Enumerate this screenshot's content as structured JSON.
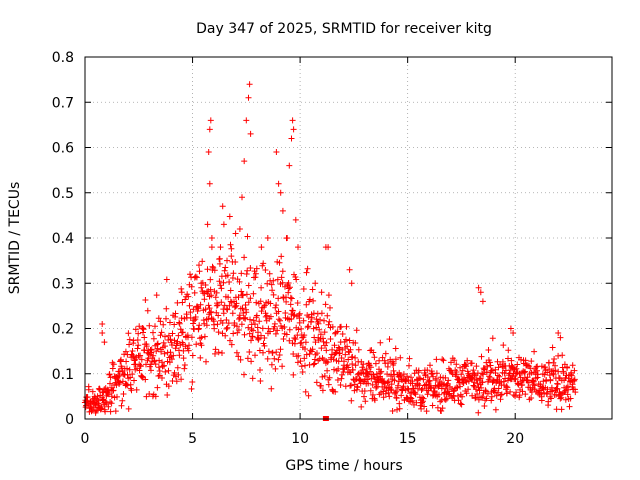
{
  "chart_data": {
    "type": "scatter",
    "title": "Day 347 of 2025, SRMTID for receiver kitg",
    "xlabel": "GPS time / hours",
    "ylabel": "SRMTID / TECUs",
    "xlim": [
      0,
      24.5
    ],
    "ylim": [
      0,
      0.8
    ],
    "x_ticks": [
      0,
      5,
      10,
      15,
      20
    ],
    "x_tick_labels": [
      "0",
      "5",
      "10",
      "15",
      "20"
    ],
    "y_ticks": [
      0,
      0.1,
      0.2,
      0.3,
      0.4,
      0.5,
      0.6,
      0.7,
      0.8
    ],
    "y_tick_labels": [
      "0",
      "0.1",
      "0.2",
      "0.3",
      "0.4",
      "0.5",
      "0.6",
      "0.7",
      "0.8"
    ],
    "grid": true,
    "marker": "plus",
    "color": "#ff0000",
    "trend": [
      [
        0.0,
        0.04
      ],
      [
        0.5,
        0.03
      ],
      [
        1.0,
        0.05
      ],
      [
        1.5,
        0.08
      ],
      [
        2.0,
        0.11
      ],
      [
        2.5,
        0.13
      ],
      [
        3.0,
        0.14
      ],
      [
        3.5,
        0.13
      ],
      [
        4.0,
        0.15
      ],
      [
        4.5,
        0.19
      ],
      [
        5.0,
        0.21
      ],
      [
        5.5,
        0.23
      ],
      [
        6.0,
        0.24
      ],
      [
        6.5,
        0.25
      ],
      [
        7.0,
        0.25
      ],
      [
        7.5,
        0.24
      ],
      [
        8.0,
        0.22
      ],
      [
        8.5,
        0.22
      ],
      [
        9.0,
        0.23
      ],
      [
        9.5,
        0.24
      ],
      [
        10.0,
        0.21
      ],
      [
        10.5,
        0.18
      ],
      [
        11.0,
        0.16
      ],
      [
        11.5,
        0.15
      ],
      [
        12.0,
        0.13
      ],
      [
        12.5,
        0.11
      ],
      [
        13.0,
        0.09
      ],
      [
        13.5,
        0.09
      ],
      [
        14.0,
        0.09
      ],
      [
        14.5,
        0.08
      ],
      [
        15.0,
        0.07
      ],
      [
        15.5,
        0.07
      ],
      [
        16.0,
        0.07
      ],
      [
        16.5,
        0.07
      ],
      [
        17.0,
        0.08
      ],
      [
        17.5,
        0.08
      ],
      [
        18.0,
        0.09
      ],
      [
        18.5,
        0.09
      ],
      [
        19.0,
        0.09
      ],
      [
        19.5,
        0.09
      ],
      [
        20.0,
        0.09
      ],
      [
        20.5,
        0.09
      ],
      [
        21.0,
        0.08
      ],
      [
        21.5,
        0.08
      ],
      [
        22.0,
        0.08
      ],
      [
        22.5,
        0.08
      ],
      [
        22.8,
        0.07
      ]
    ],
    "spikes": [
      [
        0.8,
        0.19
      ],
      [
        0.8,
        0.21
      ],
      [
        0.9,
        0.17
      ],
      [
        2.7,
        0.2
      ],
      [
        4.5,
        0.28
      ],
      [
        4.7,
        0.27
      ],
      [
        5.3,
        0.34
      ],
      [
        5.4,
        0.3
      ],
      [
        5.7,
        0.43
      ],
      [
        5.75,
        0.59
      ],
      [
        5.8,
        0.64
      ],
      [
        5.85,
        0.66
      ],
      [
        5.9,
        0.4
      ],
      [
        5.8,
        0.52
      ],
      [
        6.3,
        0.38
      ],
      [
        6.4,
        0.47
      ],
      [
        6.6,
        0.35
      ],
      [
        6.8,
        0.36
      ],
      [
        7.0,
        0.41
      ],
      [
        7.2,
        0.42
      ],
      [
        7.3,
        0.49
      ],
      [
        7.4,
        0.57
      ],
      [
        7.5,
        0.66
      ],
      [
        7.6,
        0.71
      ],
      [
        7.65,
        0.74
      ],
      [
        7.7,
        0.63
      ],
      [
        8.2,
        0.38
      ],
      [
        8.5,
        0.4
      ],
      [
        8.9,
        0.59
      ],
      [
        9.0,
        0.52
      ],
      [
        9.1,
        0.5
      ],
      [
        9.2,
        0.46
      ],
      [
        9.4,
        0.4
      ],
      [
        9.5,
        0.56
      ],
      [
        9.6,
        0.62
      ],
      [
        9.65,
        0.66
      ],
      [
        9.7,
        0.64
      ],
      [
        9.8,
        0.44
      ],
      [
        9.9,
        0.38
      ],
      [
        10.7,
        0.3
      ],
      [
        11.0,
        0.28
      ],
      [
        11.2,
        0.38
      ],
      [
        11.3,
        0.38
      ],
      [
        12.3,
        0.33
      ],
      [
        12.4,
        0.3
      ],
      [
        18.3,
        0.29
      ],
      [
        18.4,
        0.28
      ],
      [
        18.5,
        0.26
      ],
      [
        19.8,
        0.2
      ],
      [
        19.9,
        0.19
      ],
      [
        22.0,
        0.19
      ],
      [
        22.1,
        0.18
      ]
    ],
    "gap_markers": [
      [
        11.2,
        0.0
      ]
    ],
    "n_points": 1500
  }
}
